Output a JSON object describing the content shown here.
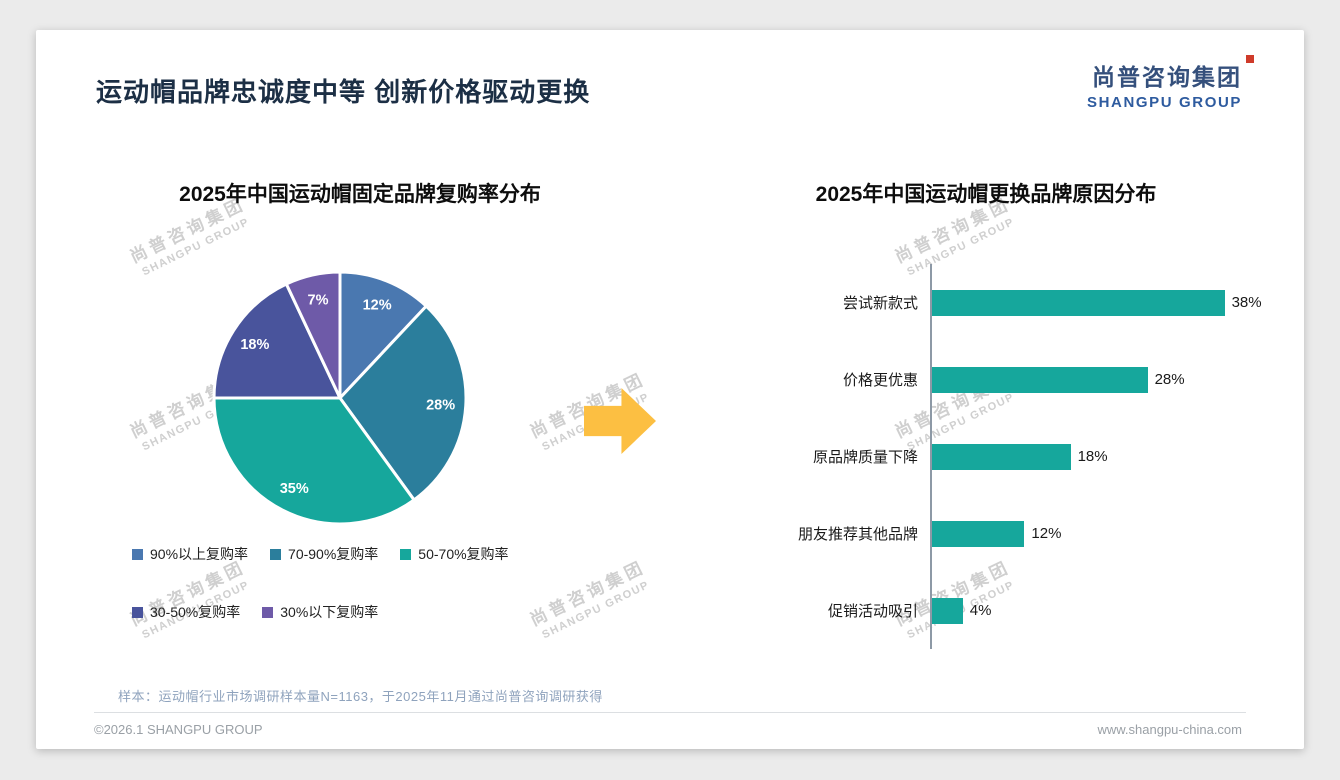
{
  "page": {
    "title": "运动帽品牌忠诚度中等 创新价格驱动更换",
    "logo": {
      "cn": "尚普咨询集团",
      "en": "SHANGPU GROUP"
    },
    "watermark": {
      "cn": "尚普咨询集团",
      "en": "SHANGPU GROUP"
    },
    "footnote": "样本：运动帽行业市场调研样本量N=1163，于2025年11月通过尚普咨询调研获得",
    "footer": {
      "left": "©2026.1 SHANGPU GROUP",
      "right": "www.shangpu-china.com"
    }
  },
  "arrow_color": "#fcbf42",
  "chart_data": [
    {
      "type": "pie",
      "title": "2025年中国运动帽固定品牌复购率分布",
      "labels": [
        "90%以上复购率",
        "70-90%复购率",
        "50-70%复购率",
        "30-50%复购率",
        "30%以下复购率"
      ],
      "values": [
        12,
        28,
        35,
        18,
        7
      ],
      "data_labels": [
        "12%",
        "28%",
        "35%",
        "18%",
        "7%"
      ],
      "colors": [
        "#4a78b0",
        "#2b7e9c",
        "#16a79c",
        "#49549c",
        "#6e5aa8"
      ],
      "legend_position": "bottom",
      "start_angle_deg": -90,
      "direction": "clockwise"
    },
    {
      "type": "bar",
      "title": "2025年中国运动帽更换品牌原因分布",
      "orientation": "horizontal",
      "categories": [
        "尝试新款式",
        "价格更优惠",
        "原品牌质量下降",
        "朋友推荐其他品牌",
        "促销活动吸引"
      ],
      "values": [
        38,
        28,
        18,
        12,
        4
      ],
      "value_labels": [
        "38%",
        "28%",
        "18%",
        "12%",
        "4%"
      ],
      "bar_color": "#16a79c",
      "axis_color": "#8d99a6",
      "xlim": [
        0,
        40
      ]
    }
  ]
}
